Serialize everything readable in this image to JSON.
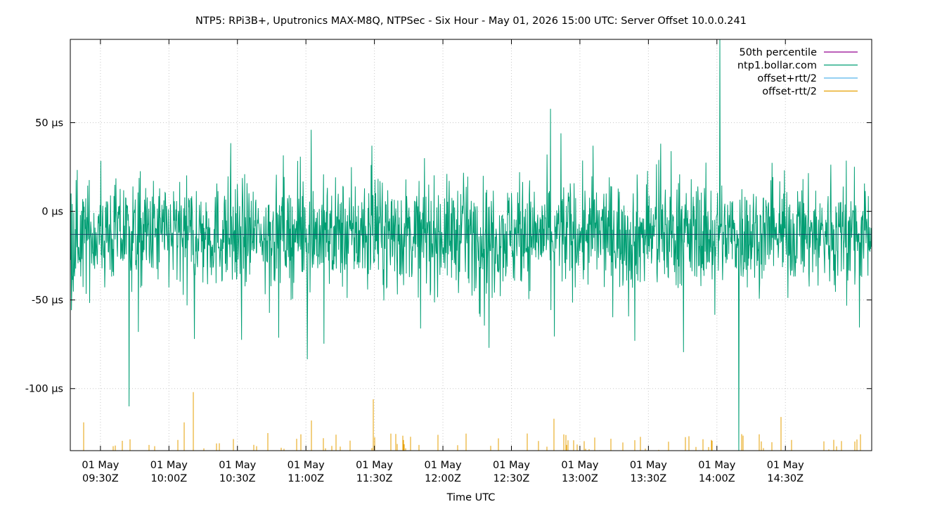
{
  "chart_data": {
    "type": "line",
    "title": "NTP5: RPi3B+, Uputronics MAX-M8Q, NTPSec - Six Hour - May 01, 2026 15:00 UTC: Server Offset 10.0.0.241",
    "xlabel": "Time UTC",
    "ylabel": "",
    "x_ticks": [
      {
        "date": "01 May",
        "time": "09:30Z",
        "t": 9.5
      },
      {
        "date": "01 May",
        "time": "10:00Z",
        "t": 10.0
      },
      {
        "date": "01 May",
        "time": "10:30Z",
        "t": 10.5
      },
      {
        "date": "01 May",
        "time": "11:00Z",
        "t": 11.0
      },
      {
        "date": "01 May",
        "time": "11:30Z",
        "t": 11.5
      },
      {
        "date": "01 May",
        "time": "12:00Z",
        "t": 12.0
      },
      {
        "date": "01 May",
        "time": "12:30Z",
        "t": 12.5
      },
      {
        "date": "01 May",
        "time": "13:00Z",
        "t": 13.0
      },
      {
        "date": "01 May",
        "time": "13:30Z",
        "t": 13.5
      },
      {
        "date": "01 May",
        "time": "14:00Z",
        "t": 14.0
      },
      {
        "date": "01 May",
        "time": "14:30Z",
        "t": 14.5
      }
    ],
    "y_ticks": [
      {
        "label": "50 µs",
        "value": 50
      },
      {
        "label": "0 µs",
        "value": 0
      },
      {
        "label": "-50 µs",
        "value": -50
      },
      {
        "label": "-100 µs",
        "value": -100
      }
    ],
    "xlim": [
      9.28,
      15.13
    ],
    "ylim": [
      -135,
      97
    ],
    "grid": true,
    "legend_position": "top-right",
    "series": [
      {
        "name": "50th percentile",
        "color": "#94008f",
        "constant": -13
      },
      {
        "name": "ntp1.bollar.com",
        "color": "#009e73",
        "mean": -13,
        "spread": 15,
        "spikes": [
          {
            "t": 9.71,
            "v": -110
          },
          {
            "t": 14.02,
            "v": 97
          },
          {
            "t": 14.16,
            "v": -135
          },
          {
            "t": 11.04,
            "v": 46
          },
          {
            "t": 12.34,
            "v": -77
          },
          {
            "t": 13.4,
            "v": -73
          },
          {
            "t": 12.86,
            "v": 44
          },
          {
            "t": 10.19,
            "v": -72
          },
          {
            "t": 9.78,
            "v": -68
          },
          {
            "t": 11.48,
            "v": 37
          },
          {
            "t": 13.1,
            "v": 37
          }
        ]
      },
      {
        "name": "offset+rtt/2",
        "color": "#56b4e9"
      },
      {
        "name": "offset-rtt/2",
        "color": "#e69f00",
        "spikes": [
          {
            "t": 10.18,
            "v": -102
          },
          {
            "t": 11.49,
            "v": -106
          },
          {
            "t": 14.47,
            "v": -116
          },
          {
            "t": 12.81,
            "v": -117
          },
          {
            "t": 11.04,
            "v": -118
          },
          {
            "t": 10.11,
            "v": -119
          },
          {
            "t": 9.38,
            "v": -119
          }
        ]
      }
    ]
  }
}
